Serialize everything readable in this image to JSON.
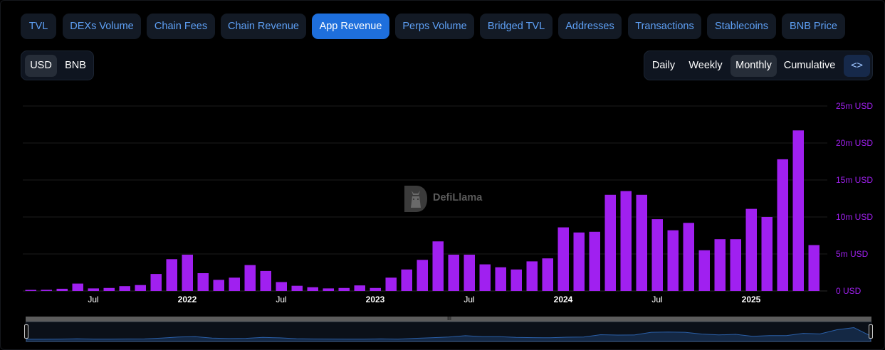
{
  "metric_tabs": [
    {
      "label": "TVL",
      "active": false
    },
    {
      "label": "DEXs Volume",
      "active": false
    },
    {
      "label": "Chain Fees",
      "active": false
    },
    {
      "label": "Chain Revenue",
      "active": false
    },
    {
      "label": "App Revenue",
      "active": true
    },
    {
      "label": "Perps Volume",
      "active": false
    },
    {
      "label": "Bridged TVL",
      "active": false
    },
    {
      "label": "Addresses",
      "active": false
    },
    {
      "label": "Transactions",
      "active": false
    },
    {
      "label": "Stablecoins",
      "active": false
    },
    {
      "label": "BNB Price",
      "active": false
    }
  ],
  "currency_toggle": {
    "options": [
      "USD",
      "BNB"
    ],
    "selected": "USD"
  },
  "period_toggle": {
    "options": [
      "Daily",
      "Weekly",
      "Monthly",
      "Cumulative"
    ],
    "selected": "Monthly"
  },
  "embed_icon": "code-brackets-icon",
  "embed_label": "<>",
  "watermark": {
    "text": "DefiLlama",
    "icon": "llama-logo-icon"
  },
  "brush": {
    "grip_label": "III"
  },
  "colors": {
    "bar": "#a020f0",
    "tab_active": "#1e6fdc",
    "tab_text": "#5ea0f5",
    "axis_text": "#a020f0"
  },
  "chart_data": {
    "type": "bar",
    "unit": "USD",
    "x_start": "2021-03",
    "x_end": "2025-04",
    "x_tick_labels": [
      {
        "label": "Jul",
        "date": "2021-07",
        "bold": false
      },
      {
        "label": "2022",
        "date": "2022-01",
        "bold": true
      },
      {
        "label": "Jul",
        "date": "2022-07",
        "bold": false
      },
      {
        "label": "2023",
        "date": "2023-01",
        "bold": true
      },
      {
        "label": "Jul",
        "date": "2023-07",
        "bold": false
      },
      {
        "label": "2024",
        "date": "2024-01",
        "bold": true
      },
      {
        "label": "Jul",
        "date": "2024-07",
        "bold": false
      },
      {
        "label": "2025",
        "date": "2025-01",
        "bold": true
      }
    ],
    "y_ticks": [
      {
        "value": 0,
        "label": "0 USD"
      },
      {
        "value": 5,
        "label": "5m USD"
      },
      {
        "value": 10,
        "label": "10m USD"
      },
      {
        "value": 15,
        "label": "15m USD"
      },
      {
        "value": 20,
        "label": "20m USD"
      },
      {
        "value": 25,
        "label": "25m USD"
      }
    ],
    "ylim": [
      0,
      25
    ],
    "y_unit": "million USD",
    "grid": true,
    "values": [
      0.1,
      0.15,
      0.3,
      1.0,
      0.35,
      0.4,
      0.65,
      0.8,
      2.3,
      4.3,
      4.9,
      2.4,
      1.5,
      1.8,
      3.5,
      2.7,
      1.2,
      0.7,
      0.5,
      0.35,
      0.4,
      0.75,
      0.4,
      1.8,
      2.9,
      4.2,
      6.7,
      4.9,
      4.9,
      3.6,
      3.2,
      2.9,
      4.0,
      4.4,
      8.6,
      7.9,
      8.0,
      13.0,
      13.5,
      13.0,
      9.7,
      8.2,
      9.2,
      5.5,
      7.0,
      7.0,
      11.1,
      10.0,
      17.8,
      21.7,
      6.2
    ],
    "overview_values": [
      0.1,
      0.15,
      0.3,
      1.0,
      0.35,
      0.4,
      0.65,
      0.8,
      2.3,
      4.3,
      4.9,
      2.4,
      1.5,
      1.8,
      3.5,
      2.7,
      1.2,
      0.7,
      0.5,
      0.35,
      0.4,
      0.75,
      0.4,
      1.8,
      2.9,
      4.2,
      6.7,
      4.9,
      4.9,
      3.6,
      3.2,
      2.9,
      4.0,
      4.4,
      8.6,
      7.9,
      8.0,
      13.0,
      13.5,
      13.0,
      9.7,
      8.2,
      9.2,
      5.5,
      7.0,
      7.0,
      11.1,
      10.0,
      17.8,
      21.7,
      6.2
    ]
  }
}
